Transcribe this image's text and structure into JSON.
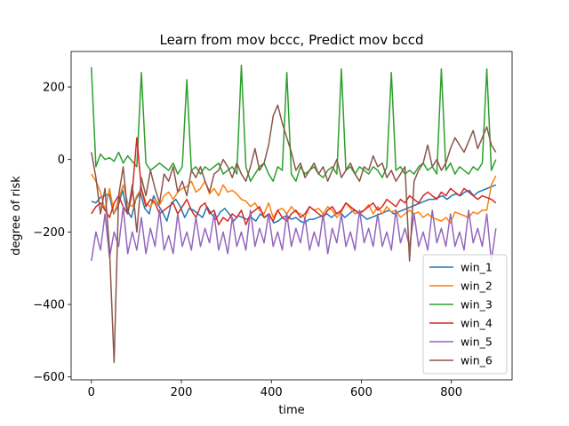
{
  "chart_data": {
    "type": "line",
    "title": "Learn from mov bccc, Predict mov bccd",
    "xlabel": "time",
    "ylabel": "degree of risk",
    "xlim": [
      -45,
      935
    ],
    "ylim": [
      -608,
      298
    ],
    "xticks": [
      0,
      200,
      400,
      600,
      800
    ],
    "yticks": [
      -600,
      -400,
      -200,
      0,
      200
    ],
    "grid": false,
    "legend_position": "lower-right",
    "n_points": 900,
    "series": [
      {
        "name": "win_1",
        "color": "#1f77b4",
        "values": [
          -115,
          -120,
          -105,
          -100,
          -95,
          -150,
          -130,
          -85,
          -140,
          -160,
          -110,
          -90,
          -135,
          -150,
          -100,
          -125,
          -145,
          -170,
          -120,
          -110,
          -130,
          -160,
          -135,
          -140,
          -150,
          -160,
          -130,
          -150,
          -165,
          -145,
          -135,
          -150,
          -170,
          -155,
          -160,
          -165,
          -160,
          -170,
          -150,
          -160,
          -150,
          -175,
          -170,
          -160,
          -155,
          -165,
          -160,
          -170,
          -175,
          -165,
          -165,
          -160,
          -155,
          -150,
          -160,
          -150,
          -145,
          -160,
          -150,
          -140,
          -145,
          -155,
          -165,
          -160,
          -155,
          -150,
          -145,
          -140,
          -150,
          -145,
          -140,
          -135,
          -130,
          -125,
          -120,
          -115,
          -110,
          -110,
          -105,
          -100,
          -110,
          -100,
          -95,
          -100,
          -90,
          -85,
          -100,
          -90,
          -85,
          -80,
          -75,
          -70
        ]
      },
      {
        "name": "win_2",
        "color": "#ff7f0e",
        "values": [
          -40,
          -60,
          -90,
          -140,
          -80,
          -150,
          -110,
          -70,
          -120,
          -130,
          -100,
          -80,
          -120,
          -130,
          -110,
          -125,
          -100,
          -90,
          -110,
          -90,
          -80,
          -75,
          -60,
          -90,
          -80,
          -60,
          -95,
          -80,
          -100,
          -70,
          -90,
          -85,
          -95,
          -110,
          -115,
          -130,
          -120,
          -140,
          -150,
          -120,
          -160,
          -140,
          -135,
          -150,
          -130,
          -145,
          -150,
          -160,
          -130,
          -140,
          -135,
          -150,
          -130,
          -140,
          -160,
          -145,
          -120,
          -135,
          -150,
          -145,
          -140,
          -125,
          -150,
          -130,
          -150,
          -130,
          -145,
          -140,
          -160,
          -150,
          -140,
          -150,
          -145,
          -160,
          -150,
          -160,
          -165,
          -170,
          -160,
          -175,
          -145,
          -150,
          -155,
          -160,
          -145,
          -150,
          -140,
          -140,
          -70,
          -45
        ]
      },
      {
        "name": "win_3",
        "color": "#2ca02c",
        "values": [
          255,
          -20,
          15,
          0,
          5,
          -5,
          20,
          -10,
          10,
          -5,
          -20,
          240,
          -10,
          -30,
          -20,
          -10,
          -20,
          -30,
          -10,
          -40,
          -20,
          220,
          -30,
          -20,
          -40,
          -20,
          -30,
          -20,
          -10,
          -40,
          -30,
          -20,
          -40,
          260,
          -20,
          -60,
          -40,
          -20,
          -10,
          -40,
          -60,
          -20,
          -30,
          240,
          -40,
          -60,
          -20,
          -40,
          -30,
          -20,
          -40,
          -50,
          -30,
          -20,
          -40,
          250,
          -30,
          -20,
          -40,
          -20,
          -30,
          -40,
          -20,
          -30,
          -50,
          -20,
          240,
          -30,
          -20,
          -40,
          -30,
          -40,
          -20,
          -10,
          -30,
          -20,
          -40,
          250,
          -30,
          -10,
          -40,
          -20,
          -30,
          -40,
          -20,
          -30,
          -10,
          250,
          -30,
          0
        ]
      },
      {
        "name": "win_4",
        "color": "#d62728",
        "values": [
          -150,
          -130,
          -120,
          -140,
          -160,
          -120,
          -100,
          -130,
          -150,
          -90,
          60,
          -80,
          -130,
          -110,
          -120,
          -150,
          -140,
          -130,
          -120,
          -150,
          -130,
          -110,
          -140,
          -160,
          -130,
          -120,
          -150,
          -140,
          -180,
          -160,
          -170,
          -150,
          -160,
          -140,
          -180,
          -150,
          -140,
          -130,
          -160,
          -150,
          -170,
          -140,
          -160,
          -170,
          -150,
          -140,
          -160,
          -150,
          -130,
          -140,
          -150,
          -160,
          -140,
          -130,
          -150,
          -140,
          -120,
          -130,
          -140,
          -150,
          -140,
          -130,
          -120,
          -140,
          -130,
          -110,
          -120,
          -130,
          -110,
          -120,
          -100,
          -110,
          -120,
          -100,
          -90,
          -100,
          -110,
          -90,
          -100,
          -80,
          -90,
          -100,
          -80,
          -90,
          -100,
          -110,
          -100,
          -105,
          -110,
          -120
        ]
      },
      {
        "name": "win_5",
        "color": "#9467bd",
        "values": [
          -280,
          -200,
          -250,
          -150,
          -270,
          -200,
          -240,
          -130,
          -260,
          -200,
          -250,
          -160,
          -260,
          -190,
          -240,
          -140,
          -250,
          -210,
          -260,
          -150,
          -240,
          -200,
          -250,
          -160,
          -240,
          -190,
          -230,
          -150,
          -250,
          -200,
          -260,
          -160,
          -240,
          -200,
          -250,
          -140,
          -240,
          -190,
          -230,
          -150,
          -240,
          -200,
          -250,
          -150,
          -240,
          -190,
          -230,
          -160,
          -250,
          -200,
          -240,
          -150,
          -260,
          -190,
          -230,
          -150,
          -240,
          -200,
          -250,
          -140,
          -230,
          -190,
          -240,
          -150,
          -240,
          -200,
          -250,
          -140,
          -230,
          -190,
          -240,
          -150,
          -240,
          -200,
          -250,
          -140,
          -230,
          -190,
          -240,
          -150,
          -240,
          -200,
          -250,
          -140,
          -230,
          -190,
          -240,
          -150,
          -280,
          -190
        ]
      },
      {
        "name": "win_6",
        "color": "#8c564b",
        "values": [
          20,
          -50,
          -150,
          -80,
          -250,
          -560,
          -100,
          -20,
          -150,
          -70,
          -200,
          -50,
          -100,
          -30,
          -80,
          -120,
          -40,
          -60,
          -20,
          -90,
          -60,
          -100,
          -30,
          -50,
          -20,
          -60,
          -90,
          -40,
          -30,
          0,
          -20,
          -50,
          -10,
          -40,
          -60,
          -20,
          30,
          -30,
          -10,
          40,
          120,
          150,
          100,
          60,
          20,
          -30,
          -10,
          -50,
          -30,
          -10,
          -40,
          -20,
          -60,
          -30,
          0,
          -50,
          -30,
          -10,
          -40,
          -60,
          -20,
          -30,
          10,
          -20,
          -10,
          -50,
          -30,
          -60,
          -40,
          -20,
          -280,
          -60,
          -30,
          -10,
          40,
          -20,
          0,
          -30,
          -10,
          30,
          60,
          40,
          20,
          50,
          80,
          30,
          60,
          90,
          40,
          20
        ]
      }
    ]
  }
}
